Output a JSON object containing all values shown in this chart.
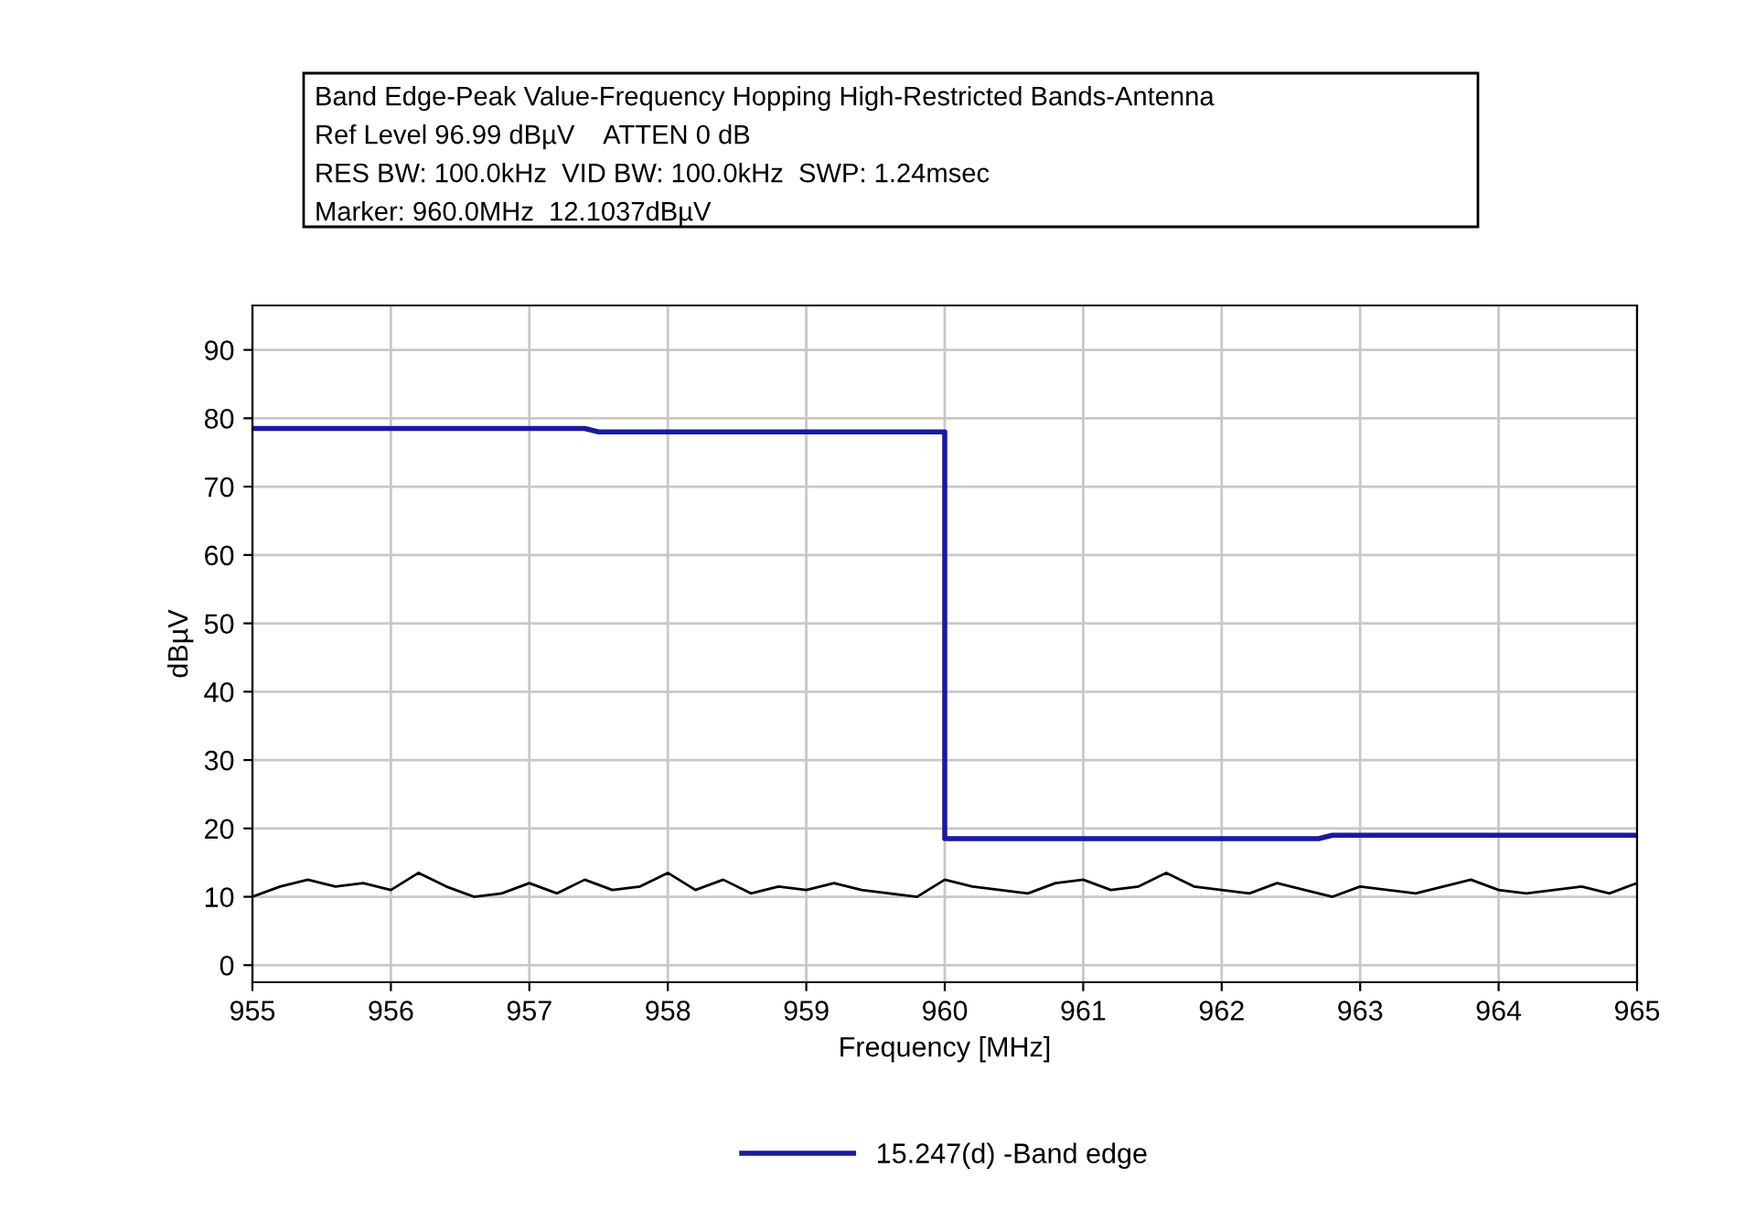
{
  "chart_data": {
    "type": "line",
    "title": "Band Edge-Peak Value-Frequency Hopping High-Restricted Bands-Antenna",
    "annotations": [
      "Ref Level 96.99 dBµV    ATTEN 0 dB",
      "RES BW: 100.0kHz  VID BW: 100.0kHz  SWP: 1.24msec",
      "Marker: 960.0MHz  12.1037dBµV"
    ],
    "xlabel": "Frequency [MHz]",
    "ylabel": "dBµV",
    "xlim": [
      955,
      965
    ],
    "xticks": [
      955,
      956,
      957,
      958,
      959,
      960,
      961,
      962,
      963,
      964,
      965
    ],
    "ylim": [
      -2.5,
      96.5
    ],
    "yticks": [
      0,
      10,
      20,
      30,
      40,
      50,
      60,
      70,
      80,
      90
    ],
    "grid": true,
    "legend": "bottom",
    "marker": "none",
    "line_style": "solid",
    "series": [
      {
        "name": "15.247(d) -Band edge",
        "color": "#1a1aa0",
        "x": [
          955,
          957.4,
          957.5,
          960,
          960,
          962.7,
          962.8,
          965
        ],
        "values": [
          78.5,
          78.5,
          78,
          78,
          18.5,
          18.5,
          19,
          19
        ]
      },
      {
        "color": "#000000",
        "x": [
          955,
          955.2,
          955.4,
          955.6,
          955.8,
          956,
          956.2,
          956.4,
          956.6,
          956.8,
          957,
          957.2,
          957.4,
          957.6,
          957.8,
          958,
          958.2,
          958.4,
          958.6,
          958.8,
          959,
          959.2,
          959.4,
          959.6,
          959.8,
          960,
          960.2,
          960.4,
          960.6,
          960.8,
          961,
          961.2,
          961.4,
          961.6,
          961.8,
          962,
          962.2,
          962.4,
          962.6,
          962.8,
          963,
          963.2,
          963.4,
          963.6,
          963.8,
          964,
          964.2,
          964.4,
          964.6,
          964.8,
          965
        ],
        "values": [
          10,
          11.5,
          12.5,
          11.5,
          12,
          11,
          13.5,
          11.5,
          10,
          10.5,
          12,
          10.5,
          12.5,
          11,
          11.5,
          13.5,
          11,
          12.5,
          10.5,
          11.5,
          11,
          12,
          11,
          10.5,
          10,
          12.5,
          11.5,
          11,
          10.5,
          12,
          12.5,
          11,
          11.5,
          13.5,
          11.5,
          11,
          10.5,
          12,
          11,
          10,
          11.5,
          11,
          10.5,
          11.5,
          12.5,
          11,
          10.5,
          11,
          11.5,
          10.5,
          12
        ]
      }
    ]
  }
}
